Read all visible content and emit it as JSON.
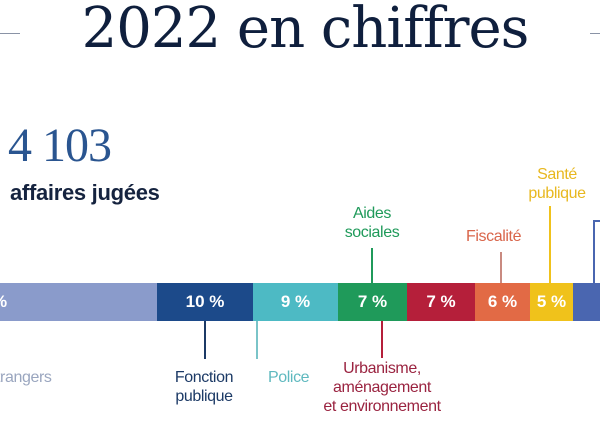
{
  "header": {
    "title": "2022 en chiffres"
  },
  "summary": {
    "count": "4 103",
    "label": "affaires jugées"
  },
  "chart_data": {
    "type": "bar",
    "orientation": "horizontal stacked (100%)",
    "segments": [
      {
        "category": "…trangers",
        "label": "%",
        "value": null,
        "color": "#8a9bcb"
      },
      {
        "category": "Fonction publique",
        "label": "10 %",
        "value": 10,
        "color": "#1c4a8a"
      },
      {
        "category": "Police",
        "label": "9 %",
        "value": 9,
        "color": "#4dbac4"
      },
      {
        "category": "Aides sociales",
        "label": "7 %",
        "value": 7,
        "color": "#1f9a5a"
      },
      {
        "category": "Urbanisme, aménagement et environnement",
        "label": "7 %",
        "value": 7,
        "color": "#b51f3a"
      },
      {
        "category": "Fiscalité",
        "label": "6 %",
        "value": 6,
        "color": "#e26a45"
      },
      {
        "category": "Santé publique",
        "label": "5 %",
        "value": 5,
        "color": "#f0c21b"
      },
      {
        "category": "",
        "label": "",
        "value": null,
        "color": "#4a66b0"
      }
    ]
  },
  "labels": {
    "etrangers": "trangers",
    "fonction_1": "Fonction",
    "fonction_2": "publique",
    "police": "Police",
    "aides_1": "Aides",
    "aides_2": "sociales",
    "urbanisme_1": "Urbanisme,",
    "urbanisme_2": "aménagement",
    "urbanisme_3": "et environnement",
    "fiscalite": "Fiscalité",
    "sante_1": "Santé",
    "sante_2": "publique"
  }
}
